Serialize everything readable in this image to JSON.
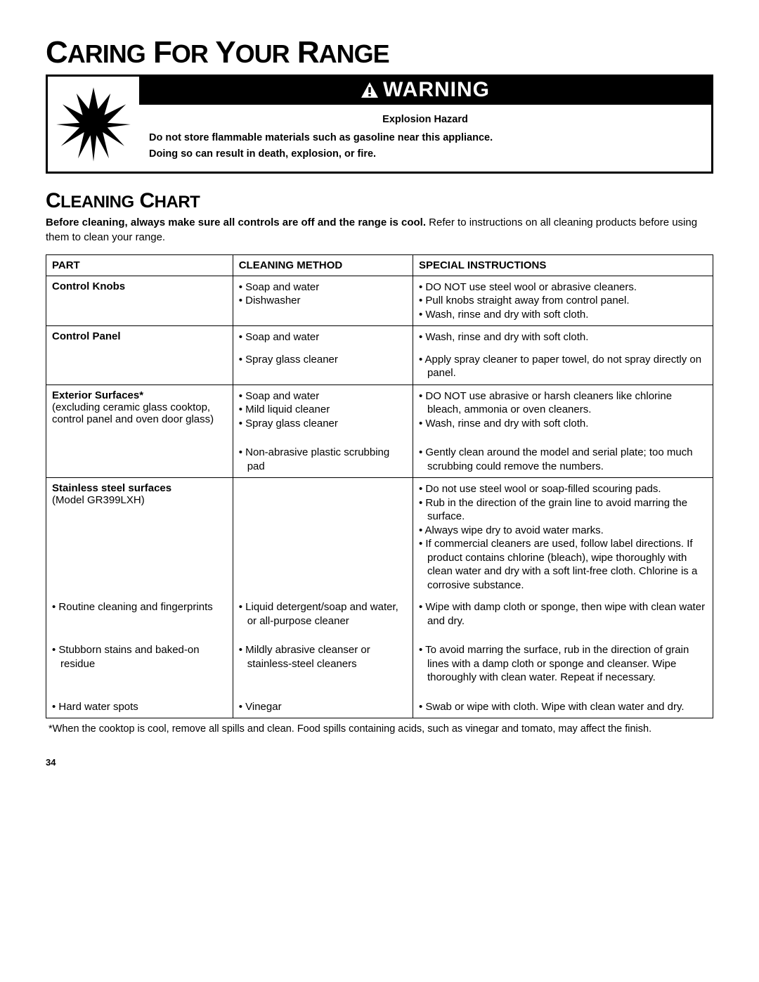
{
  "title_parts": [
    "C",
    "ARING",
    " F",
    "OR",
    " Y",
    "OUR",
    " R",
    "ANGE"
  ],
  "warning": {
    "banner": "WARNING",
    "hazard": "Explosion Hazard",
    "line1": "Do not store flammable materials such as gasoline near this appliance.",
    "line2": "Doing so can result in death, explosion, or fire."
  },
  "section_parts": [
    "C",
    "LEANING",
    " C",
    "HART"
  ],
  "intro_bold": "Before cleaning, always make sure all controls are off and the range is cool.",
  "intro_rest": " Refer to instructions on all cleaning products before using them to clean your range.",
  "headers": {
    "part": "PART",
    "method": "CLEANING METHOD",
    "instr": "SPECIAL INSTRUCTIONS"
  },
  "rows": {
    "r1": {
      "part": "Control Knobs",
      "method": [
        "Soap and water",
        "Dishwasher"
      ],
      "instr": [
        "DO NOT use steel wool or abrasive cleaners.",
        "Pull knobs straight away from control panel.",
        "Wash, rinse and dry with soft cloth."
      ]
    },
    "r2a": {
      "part": "Control Panel",
      "method": [
        "Soap and water"
      ],
      "instr": [
        "Wash, rinse and dry with soft cloth."
      ]
    },
    "r2b": {
      "method": [
        "Spray glass cleaner"
      ],
      "instr": [
        "Apply spray cleaner to paper towel, do not spray directly on panel."
      ]
    },
    "r3a": {
      "part_bold": "Exterior Surfaces*",
      "part_sub": "(excluding ceramic glass cooktop, control panel and oven door glass)",
      "method": [
        "Soap and water",
        "Mild liquid cleaner",
        "Spray glass cleaner"
      ],
      "instr": [
        "DO NOT use abrasive or harsh cleaners like chlorine bleach, ammonia or oven cleaners.",
        "Wash, rinse and dry with soft cloth."
      ]
    },
    "r3b": {
      "method": [
        "Non-abrasive plastic scrubbing pad"
      ],
      "instr": [
        "Gently clean around the model and serial plate; too much scrubbing could remove the numbers."
      ]
    },
    "r4a": {
      "part_bold": "Stainless steel surfaces",
      "part_sub": "(Model GR399LXH)",
      "instr": [
        "Do not use steel wool or soap-filled scouring pads.",
        "Rub in the direction of the grain line to avoid marring the surface.",
        "Always wipe dry to avoid water marks.",
        "If commercial cleaners are used, follow label directions. If product contains chlorine (bleach), wipe thoroughly with clean water and dry with a soft lint-free cloth. Chlorine is a corrosive substance."
      ]
    },
    "r4b": {
      "part": "Routine cleaning and fingerprints",
      "method": [
        "Liquid detergent/soap and water, or all-purpose cleaner"
      ],
      "instr": [
        "Wipe with damp cloth or sponge, then wipe with clean water and dry."
      ]
    },
    "r4c": {
      "part": "Stubborn stains and baked-on residue",
      "method": [
        "Mildly abrasive cleanser or stainless-steel cleaners"
      ],
      "instr": [
        "To avoid marring the surface, rub in the direction of grain lines with a damp cloth or sponge and cleanser. Wipe thoroughly with clean water. Repeat if necessary."
      ]
    },
    "r4d": {
      "part": "Hard water spots",
      "method": [
        "Vinegar"
      ],
      "instr": [
        "Swab or wipe with cloth. Wipe with clean water and dry."
      ]
    }
  },
  "footnote": "*When the cooktop is cool, remove all spills and clean. Food spills containing acids, such as vinegar and tomato, may affect the finish.",
  "page_num": "34"
}
